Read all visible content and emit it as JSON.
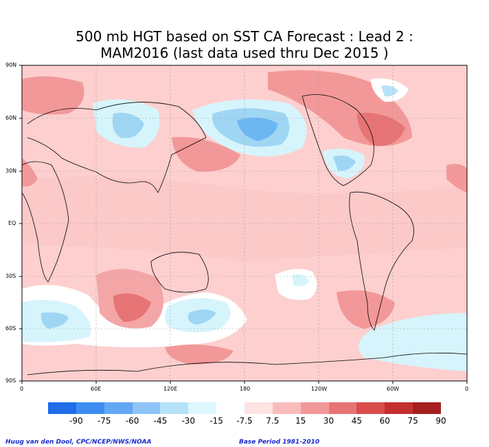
{
  "title": {
    "line1": "500 mb HGT based on SST CA Forecast : Lead 2 :",
    "line2": "MAM2016 (last data used thru Dec 2015 )"
  },
  "lat_labels": [
    "90N",
    "60N",
    "30N",
    "EQ",
    "30S",
    "60S",
    "90S"
  ],
  "lon_labels": [
    "0",
    "60E",
    "120E",
    "180",
    "120W",
    "60W",
    "0"
  ],
  "colorbar": {
    "colors": [
      "#1f6de8",
      "#3d8ef0",
      "#62a8f5",
      "#8ec4f7",
      "#b6e2f9",
      "#dcf7fd",
      "#ffffff",
      "#fde3e3",
      "#f8bcbc",
      "#f29898",
      "#e67474",
      "#d84c4c",
      "#c32f2f",
      "#a61f1f"
    ],
    "labels": [
      "-90",
      "-75",
      "-60",
      "-45",
      "-30",
      "-15",
      "-7.5",
      "7.5",
      "15",
      "30",
      "45",
      "60",
      "75",
      "90"
    ]
  },
  "footer": {
    "left": "Huug van den Dool, CPC/NCEP/NWS/NOAA",
    "right": "Base Period 1981-2010"
  }
}
